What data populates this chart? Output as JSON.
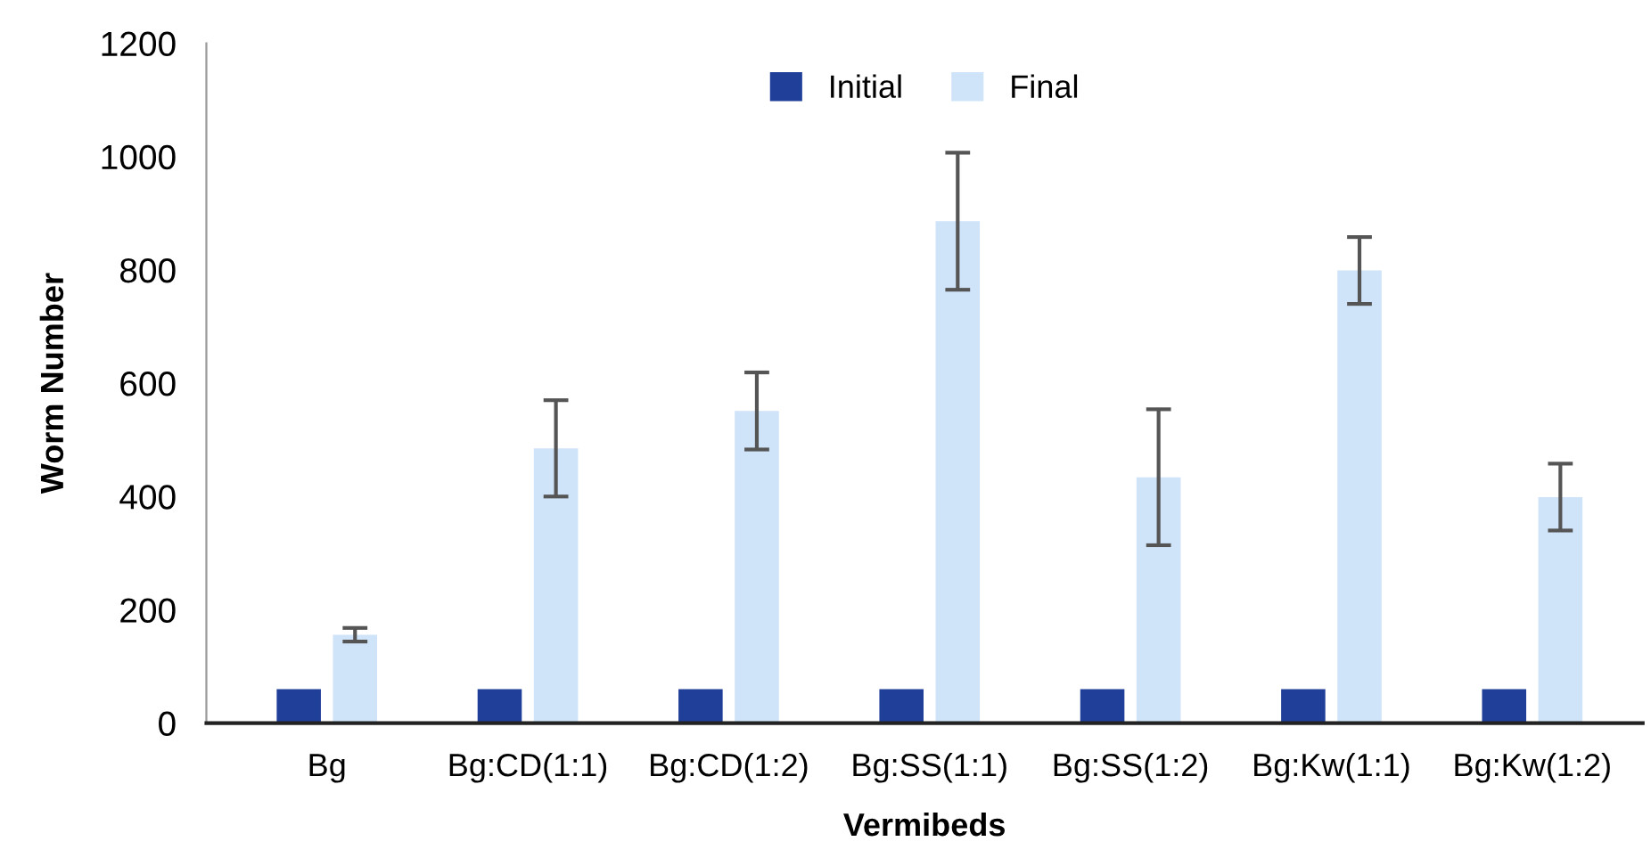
{
  "chart_data": {
    "type": "bar",
    "xlabel": "Vermibeds",
    "ylabel": "Worm Number",
    "categories": [
      "Bg",
      "Bg:CD(1:1)",
      "Bg:CD(1:2)",
      "Bg:SS(1:1)",
      "Bg:SS(1:2)",
      "Bg:Kw(1:1)",
      "Bg:Kw(1:2)"
    ],
    "series": [
      {
        "name": "Initial",
        "color": "#203f99",
        "values": [
          60,
          60,
          60,
          60,
          60,
          60,
          60
        ]
      },
      {
        "name": "Final",
        "color": "#cfe3f9",
        "values": [
          156,
          485,
          551,
          886,
          434,
          799,
          399
        ],
        "errors": [
          12,
          85,
          68,
          121,
          120,
          59,
          59
        ]
      }
    ],
    "ylim": [
      0,
      1200
    ],
    "yticks": [
      0,
      200,
      400,
      600,
      800,
      1000,
      1200
    ],
    "grid": false,
    "legend": "top"
  }
}
